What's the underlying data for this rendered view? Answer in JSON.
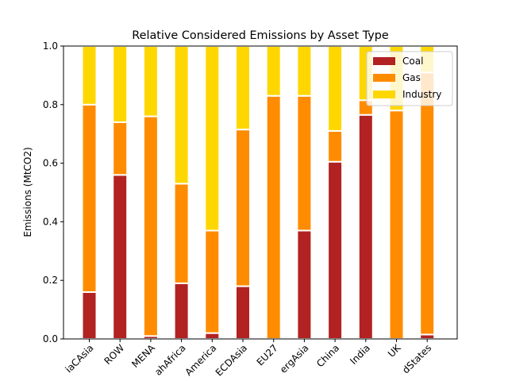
{
  "chart_data": {
    "type": "bar",
    "stacked": true,
    "title": "Relative Considered Emissions by Asset Type",
    "xlabel": "",
    "ylabel": "Emissions (MtCO2)",
    "ylim": [
      0,
      1.0
    ],
    "yticks": [
      "0.0",
      "0.2",
      "0.4",
      "0.6",
      "0.8",
      "1.0"
    ],
    "categories": [
      "iaCAsia",
      "ROW",
      "MENA",
      "ahAfrica",
      "America",
      "ECDAsia",
      "EU27",
      "ergAsia",
      "China",
      "India",
      "UK",
      "dStates"
    ],
    "series": [
      {
        "name": "Coal",
        "color": "#b22222",
        "values": [
          0.16,
          0.56,
          0.01,
          0.19,
          0.02,
          0.18,
          0.0,
          0.37,
          0.605,
          0.765,
          0.0,
          0.015
        ]
      },
      {
        "name": "Gas",
        "color": "#ff8c00",
        "values": [
          0.64,
          0.18,
          0.75,
          0.34,
          0.35,
          0.535,
          0.83,
          0.46,
          0.105,
          0.05,
          0.78,
          0.895
        ]
      },
      {
        "name": "Industry",
        "color": "#ffd700",
        "values": [
          0.2,
          0.26,
          0.24,
          0.47,
          0.63,
          0.285,
          0.17,
          0.17,
          0.29,
          0.185,
          0.22,
          0.09
        ]
      }
    ],
    "grid": false,
    "legend": "top-right"
  }
}
